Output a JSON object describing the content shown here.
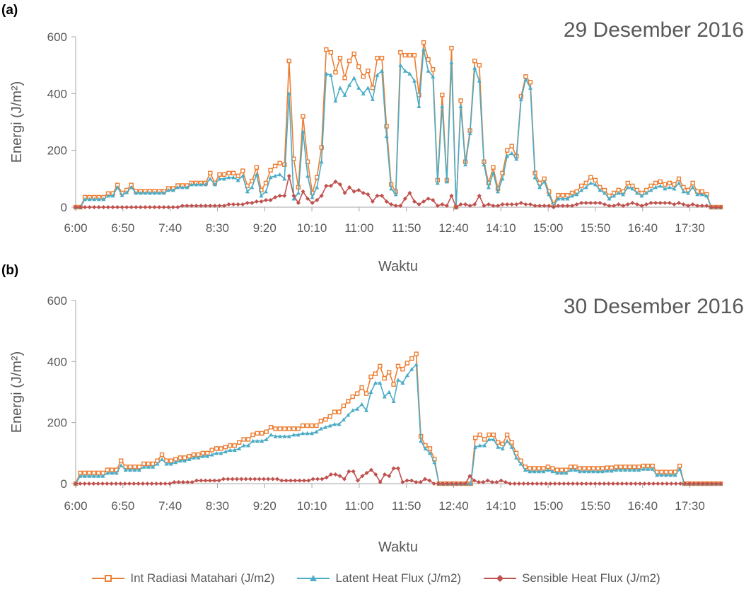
{
  "panels": [
    {
      "tag": "(a)",
      "title": "29 Desember 2016"
    },
    {
      "tag": "(b)",
      "title": "30 Desember 2016"
    }
  ],
  "legend": [
    {
      "label": "Int Radiasi Matahari (J/m2)",
      "color": "#ED7D31",
      "marker": "square"
    },
    {
      "label": "Latent Heat Flux (J/m2)",
      "color": "#4BACC6",
      "marker": "triangle"
    },
    {
      "label": "Sensible Heat Flux (J/m2)",
      "color": "#C0504D",
      "marker": "diamond"
    }
  ],
  "chart_data": [
    {
      "type": "line",
      "title": "29 Desember 2016",
      "xlabel": "Waktu",
      "ylabel": "Energi (J/m²)",
      "ylim": [
        0,
        600
      ],
      "yticks": [
        0,
        200,
        400,
        600
      ],
      "xtick_labels": [
        "6:00",
        "6:50",
        "7:40",
        "8:30",
        "9:20",
        "10:10",
        "11:00",
        "11:50",
        "12:40",
        "14:10",
        "15:00",
        "15:50",
        "16:40",
        "17:30"
      ],
      "grid": false,
      "legend_position": "bottom",
      "series": [
        {
          "name": "Int Radiasi Matahari (J/m2)",
          "color": "#ED7D31",
          "marker": "square",
          "values": [
            0,
            0,
            35,
            35,
            35,
            35,
            35,
            48,
            48,
            78,
            50,
            60,
            78,
            56,
            56,
            56,
            56,
            56,
            56,
            56,
            66,
            66,
            76,
            76,
            76,
            85,
            85,
            85,
            85,
            120,
            85,
            115,
            115,
            120,
            120,
            110,
            128,
            75,
            92,
            140,
            60,
            85,
            130,
            145,
            155,
            150,
            515,
            170,
            70,
            320,
            160,
            50,
            105,
            210,
            555,
            545,
            475,
            525,
            455,
            515,
            540,
            495,
            460,
            480,
            420,
            525,
            525,
            285,
            80,
            55,
            545,
            535,
            535,
            535,
            395,
            580,
            520,
            485,
            95,
            395,
            95,
            560,
            0,
            375,
            160,
            270,
            515,
            500,
            160,
            85,
            140,
            65,
            120,
            200,
            215,
            180,
            390,
            460,
            440,
            120,
            85,
            100,
            55,
            10,
            42,
            42,
            42,
            50,
            55,
            75,
            85,
            105,
            95,
            70,
            60,
            40,
            50,
            60,
            55,
            85,
            75,
            60,
            50,
            60,
            75,
            85,
            90,
            80,
            85,
            80,
            100,
            70,
            60,
            85,
            55,
            55,
            45,
            0,
            0,
            0
          ]
        },
        {
          "name": "Latent Heat Flux (J/m2)",
          "color": "#4BACC6",
          "marker": "triangle",
          "values": [
            0,
            0,
            28,
            28,
            28,
            28,
            28,
            40,
            40,
            70,
            42,
            52,
            70,
            50,
            50,
            50,
            50,
            50,
            50,
            50,
            60,
            60,
            70,
            70,
            70,
            80,
            80,
            80,
            80,
            100,
            80,
            100,
            100,
            105,
            105,
            95,
            110,
            55,
            70,
            115,
            40,
            55,
            105,
            110,
            115,
            100,
            400,
            30,
            50,
            265,
            110,
            35,
            70,
            160,
            470,
            465,
            375,
            420,
            395,
            430,
            455,
            420,
            400,
            420,
            380,
            465,
            480,
            250,
            65,
            45,
            500,
            480,
            470,
            445,
            355,
            555,
            480,
            460,
            85,
            355,
            90,
            510,
            0,
            355,
            150,
            260,
            490,
            445,
            150,
            70,
            120,
            55,
            100,
            180,
            190,
            170,
            380,
            450,
            420,
            105,
            70,
            90,
            45,
            5,
            30,
            30,
            30,
            40,
            45,
            60,
            70,
            85,
            80,
            60,
            50,
            30,
            40,
            50,
            45,
            70,
            65,
            50,
            40,
            50,
            60,
            70,
            75,
            65,
            70,
            65,
            85,
            55,
            50,
            70,
            45,
            45,
            40,
            0,
            0,
            0
          ]
        },
        {
          "name": "Sensible Heat Flux (J/m2)",
          "color": "#C0504D",
          "marker": "diamond",
          "values": [
            0,
            0,
            0,
            0,
            0,
            0,
            0,
            0,
            0,
            0,
            0,
            0,
            0,
            0,
            0,
            0,
            0,
            0,
            0,
            0,
            0,
            0,
            0,
            5,
            5,
            5,
            5,
            5,
            5,
            5,
            5,
            5,
            5,
            10,
            10,
            10,
            10,
            15,
            15,
            20,
            20,
            25,
            25,
            35,
            40,
            40,
            110,
            40,
            15,
            55,
            30,
            15,
            25,
            40,
            75,
            75,
            90,
            80,
            50,
            70,
            55,
            60,
            50,
            45,
            20,
            40,
            40,
            20,
            10,
            5,
            5,
            30,
            50,
            20,
            10,
            20,
            30,
            25,
            5,
            10,
            5,
            40,
            0,
            10,
            10,
            5,
            10,
            40,
            5,
            10,
            5,
            5,
            10,
            10,
            10,
            10,
            15,
            10,
            10,
            5,
            5,
            5,
            5,
            0,
            5,
            5,
            5,
            5,
            10,
            15,
            15,
            15,
            15,
            15,
            10,
            5,
            5,
            10,
            5,
            10,
            15,
            10,
            5,
            10,
            15,
            15,
            15,
            15,
            15,
            10,
            15,
            10,
            5,
            10,
            5,
            5,
            5,
            0,
            0,
            0
          ]
        }
      ]
    },
    {
      "type": "line",
      "title": "30 Desember 2016",
      "xlabel": "Waktu",
      "ylabel": "Energi (J/m²)",
      "ylim": [
        0,
        600
      ],
      "yticks": [
        0,
        200,
        400,
        600
      ],
      "xtick_labels": [
        "6:00",
        "6:50",
        "7:40",
        "8:30",
        "9:20",
        "10:10",
        "11:00",
        "11:50",
        "12:40",
        "14:10",
        "15:00",
        "15:50",
        "16:40",
        "17:30"
      ],
      "grid": false,
      "legend_position": "bottom",
      "series": [
        {
          "name": "Int Radiasi Matahari (J/m2)",
          "color": "#ED7D31",
          "marker": "square",
          "values": [
            0,
            35,
            35,
            35,
            35,
            35,
            35,
            45,
            45,
            45,
            75,
            55,
            55,
            55,
            55,
            65,
            65,
            65,
            75,
            95,
            75,
            75,
            80,
            85,
            85,
            90,
            95,
            95,
            100,
            100,
            110,
            115,
            115,
            120,
            125,
            125,
            135,
            145,
            145,
            160,
            165,
            165,
            170,
            185,
            180,
            180,
            180,
            180,
            180,
            180,
            190,
            190,
            190,
            190,
            205,
            210,
            220,
            235,
            235,
            255,
            270,
            285,
            295,
            315,
            295,
            350,
            360,
            385,
            345,
            365,
            325,
            385,
            375,
            395,
            410,
            425,
            155,
            125,
            115,
            80,
            0,
            0,
            0,
            0,
            0,
            0,
            0,
            0,
            150,
            160,
            145,
            160,
            160,
            135,
            130,
            160,
            135,
            100,
            75,
            55,
            50,
            50,
            50,
            50,
            55,
            50,
            45,
            45,
            45,
            55,
            55,
            50,
            50,
            50,
            50,
            50,
            50,
            52,
            52,
            55,
            55,
            55,
            55,
            55,
            55,
            58,
            58,
            58,
            38,
            38,
            38,
            38,
            38,
            58,
            0,
            0,
            0,
            0,
            0,
            0,
            0,
            0,
            0
          ]
        },
        {
          "name": "Latent Heat Flux (J/m2)",
          "color": "#4BACC6",
          "marker": "triangle",
          "values": [
            0,
            25,
            25,
            25,
            25,
            25,
            25,
            35,
            35,
            35,
            60,
            45,
            45,
            45,
            45,
            55,
            55,
            55,
            65,
            80,
            65,
            65,
            70,
            75,
            75,
            80,
            85,
            85,
            90,
            90,
            95,
            100,
            100,
            105,
            110,
            110,
            115,
            125,
            125,
            140,
            140,
            140,
            145,
            160,
            155,
            155,
            155,
            155,
            160,
            160,
            165,
            165,
            165,
            170,
            180,
            185,
            190,
            195,
            195,
            210,
            225,
            240,
            245,
            260,
            240,
            300,
            330,
            330,
            285,
            300,
            270,
            340,
            330,
            355,
            375,
            390,
            140,
            115,
            100,
            70,
            0,
            0,
            0,
            0,
            0,
            0,
            0,
            0,
            120,
            125,
            125,
            145,
            145,
            120,
            115,
            140,
            120,
            85,
            65,
            45,
            40,
            40,
            40,
            40,
            45,
            40,
            35,
            35,
            35,
            45,
            45,
            40,
            40,
            40,
            40,
            40,
            40,
            42,
            42,
            45,
            45,
            45,
            45,
            45,
            45,
            48,
            48,
            48,
            28,
            28,
            28,
            28,
            28,
            48,
            0,
            0,
            0,
            0,
            0,
            0,
            0,
            0,
            0
          ]
        },
        {
          "name": "Sensible Heat Flux (J/m2)",
          "color": "#C0504D",
          "marker": "diamond",
          "values": [
            0,
            0,
            0,
            0,
            0,
            0,
            0,
            0,
            0,
            0,
            0,
            0,
            0,
            0,
            0,
            0,
            0,
            0,
            0,
            0,
            0,
            0,
            5,
            5,
            5,
            5,
            5,
            10,
            10,
            10,
            10,
            10,
            10,
            15,
            15,
            15,
            15,
            15,
            15,
            15,
            15,
            15,
            15,
            15,
            15,
            15,
            10,
            10,
            10,
            10,
            10,
            10,
            10,
            15,
            15,
            15,
            20,
            30,
            30,
            25,
            15,
            40,
            40,
            10,
            25,
            35,
            45,
            30,
            5,
            30,
            25,
            50,
            50,
            5,
            10,
            10,
            5,
            5,
            15,
            10,
            0,
            0,
            0,
            0,
            0,
            0,
            0,
            0,
            25,
            10,
            5,
            5,
            10,
            5,
            5,
            10,
            5,
            0,
            0,
            0,
            0,
            0,
            0,
            0,
            0,
            0,
            0,
            0,
            0,
            0,
            0,
            0,
            0,
            0,
            0,
            0,
            0,
            0,
            0,
            0,
            0,
            0,
            0,
            0,
            0,
            0,
            0,
            0,
            0,
            0,
            0,
            0,
            0,
            0,
            0,
            0,
            0,
            0,
            0,
            0,
            0,
            0,
            0,
            0,
            0
          ]
        }
      ]
    }
  ]
}
